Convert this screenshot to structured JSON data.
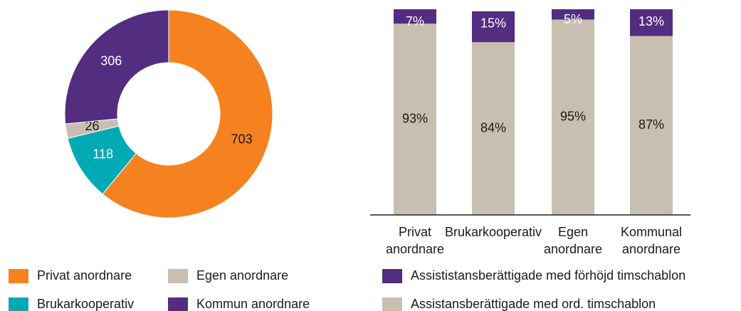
{
  "chart_data": [
    {
      "type": "pie",
      "categories": [
        "Privat anordnare",
        "Brukarkooperativ",
        "Egen anordnare",
        "Kommun anordnare"
      ],
      "values": [
        703,
        118,
        26,
        306
      ],
      "colors": [
        "#f5821f",
        "#00aab4",
        "#c9bfb0",
        "#522d80"
      ],
      "donut": true
    },
    {
      "type": "stacked_bar",
      "categories": [
        "Privat anordnare",
        "Brukarkooperativ",
        "Egen anordnare",
        "Kommunal anordnare"
      ],
      "ylim": [
        0,
        100
      ],
      "series": [
        {
          "name": "Assistansberättigade med ord. timschablon",
          "color": "#c9bfb0",
          "values": [
            93,
            84,
            95,
            87
          ],
          "value_labels": [
            "93%",
            "84%",
            "95%",
            "87%"
          ]
        },
        {
          "name": "Assististansberättigade med förhöjd timschablon",
          "color": "#522d80",
          "values": [
            7,
            15,
            5,
            13
          ],
          "value_labels": [
            "7%",
            "15%",
            "5%",
            "13%"
          ]
        }
      ]
    }
  ]
}
